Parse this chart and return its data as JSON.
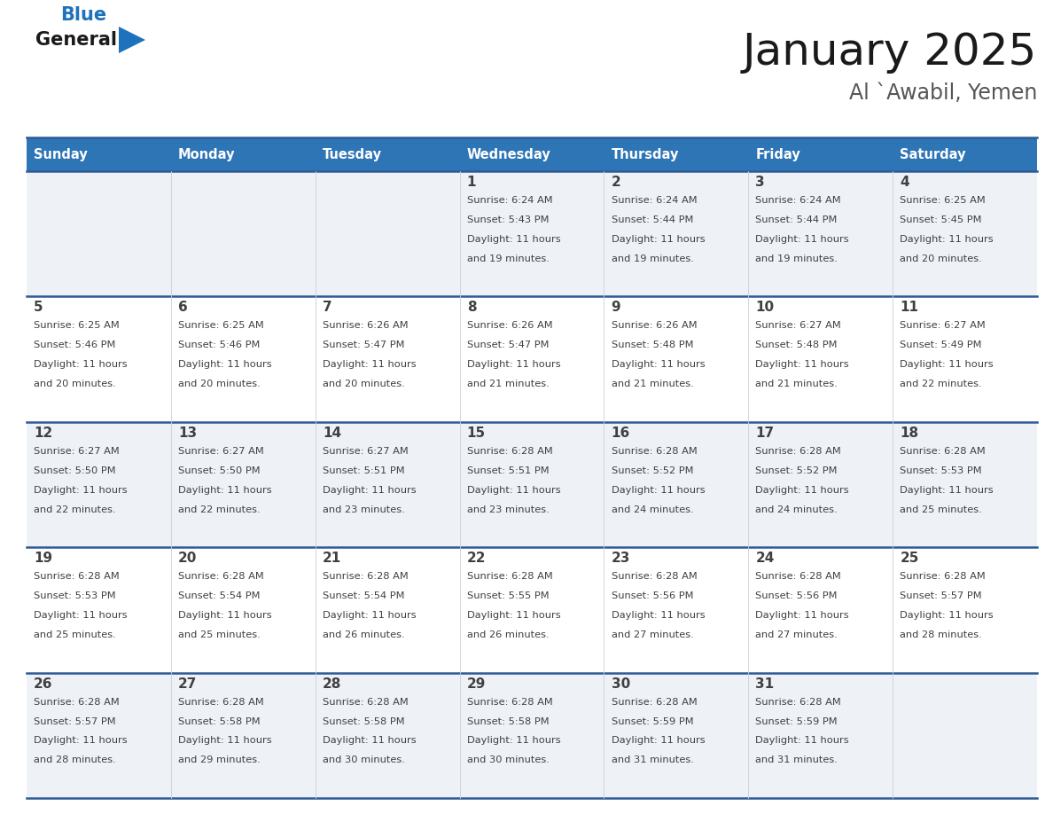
{
  "title": "January 2025",
  "subtitle": "Al `Awabil, Yemen",
  "header_bg": "#2E75B6",
  "header_text_color": "#FFFFFF",
  "cell_bg_even": "#EEF2F7",
  "cell_bg_odd": "#FFFFFF",
  "row_line_color": "#2E5A96",
  "text_color": "#404040",
  "days_of_week": [
    "Sunday",
    "Monday",
    "Tuesday",
    "Wednesday",
    "Thursday",
    "Friday",
    "Saturday"
  ],
  "calendar_data": [
    [
      {
        "day": "",
        "sunrise": "",
        "sunset": "",
        "daylight": ""
      },
      {
        "day": "",
        "sunrise": "",
        "sunset": "",
        "daylight": ""
      },
      {
        "day": "",
        "sunrise": "",
        "sunset": "",
        "daylight": ""
      },
      {
        "day": "1",
        "sunrise": "6:24 AM",
        "sunset": "5:43 PM",
        "daylight": "11 hours and 19 minutes."
      },
      {
        "day": "2",
        "sunrise": "6:24 AM",
        "sunset": "5:44 PM",
        "daylight": "11 hours and 19 minutes."
      },
      {
        "day": "3",
        "sunrise": "6:24 AM",
        "sunset": "5:44 PM",
        "daylight": "11 hours and 19 minutes."
      },
      {
        "day": "4",
        "sunrise": "6:25 AM",
        "sunset": "5:45 PM",
        "daylight": "11 hours and 20 minutes."
      }
    ],
    [
      {
        "day": "5",
        "sunrise": "6:25 AM",
        "sunset": "5:46 PM",
        "daylight": "11 hours and 20 minutes."
      },
      {
        "day": "6",
        "sunrise": "6:25 AM",
        "sunset": "5:46 PM",
        "daylight": "11 hours and 20 minutes."
      },
      {
        "day": "7",
        "sunrise": "6:26 AM",
        "sunset": "5:47 PM",
        "daylight": "11 hours and 20 minutes."
      },
      {
        "day": "8",
        "sunrise": "6:26 AM",
        "sunset": "5:47 PM",
        "daylight": "11 hours and 21 minutes."
      },
      {
        "day": "9",
        "sunrise": "6:26 AM",
        "sunset": "5:48 PM",
        "daylight": "11 hours and 21 minutes."
      },
      {
        "day": "10",
        "sunrise": "6:27 AM",
        "sunset": "5:48 PM",
        "daylight": "11 hours and 21 minutes."
      },
      {
        "day": "11",
        "sunrise": "6:27 AM",
        "sunset": "5:49 PM",
        "daylight": "11 hours and 22 minutes."
      }
    ],
    [
      {
        "day": "12",
        "sunrise": "6:27 AM",
        "sunset": "5:50 PM",
        "daylight": "11 hours and 22 minutes."
      },
      {
        "day": "13",
        "sunrise": "6:27 AM",
        "sunset": "5:50 PM",
        "daylight": "11 hours and 22 minutes."
      },
      {
        "day": "14",
        "sunrise": "6:27 AM",
        "sunset": "5:51 PM",
        "daylight": "11 hours and 23 minutes."
      },
      {
        "day": "15",
        "sunrise": "6:28 AM",
        "sunset": "5:51 PM",
        "daylight": "11 hours and 23 minutes."
      },
      {
        "day": "16",
        "sunrise": "6:28 AM",
        "sunset": "5:52 PM",
        "daylight": "11 hours and 24 minutes."
      },
      {
        "day": "17",
        "sunrise": "6:28 AM",
        "sunset": "5:52 PM",
        "daylight": "11 hours and 24 minutes."
      },
      {
        "day": "18",
        "sunrise": "6:28 AM",
        "sunset": "5:53 PM",
        "daylight": "11 hours and 25 minutes."
      }
    ],
    [
      {
        "day": "19",
        "sunrise": "6:28 AM",
        "sunset": "5:53 PM",
        "daylight": "11 hours and 25 minutes."
      },
      {
        "day": "20",
        "sunrise": "6:28 AM",
        "sunset": "5:54 PM",
        "daylight": "11 hours and 25 minutes."
      },
      {
        "day": "21",
        "sunrise": "6:28 AM",
        "sunset": "5:54 PM",
        "daylight": "11 hours and 26 minutes."
      },
      {
        "day": "22",
        "sunrise": "6:28 AM",
        "sunset": "5:55 PM",
        "daylight": "11 hours and 26 minutes."
      },
      {
        "day": "23",
        "sunrise": "6:28 AM",
        "sunset": "5:56 PM",
        "daylight": "11 hours and 27 minutes."
      },
      {
        "day": "24",
        "sunrise": "6:28 AM",
        "sunset": "5:56 PM",
        "daylight": "11 hours and 27 minutes."
      },
      {
        "day": "25",
        "sunrise": "6:28 AM",
        "sunset": "5:57 PM",
        "daylight": "11 hours and 28 minutes."
      }
    ],
    [
      {
        "day": "26",
        "sunrise": "6:28 AM",
        "sunset": "5:57 PM",
        "daylight": "11 hours and 28 minutes."
      },
      {
        "day": "27",
        "sunrise": "6:28 AM",
        "sunset": "5:58 PM",
        "daylight": "11 hours and 29 minutes."
      },
      {
        "day": "28",
        "sunrise": "6:28 AM",
        "sunset": "5:58 PM",
        "daylight": "11 hours and 30 minutes."
      },
      {
        "day": "29",
        "sunrise": "6:28 AM",
        "sunset": "5:58 PM",
        "daylight": "11 hours and 30 minutes."
      },
      {
        "day": "30",
        "sunrise": "6:28 AM",
        "sunset": "5:59 PM",
        "daylight": "11 hours and 31 minutes."
      },
      {
        "day": "31",
        "sunrise": "6:28 AM",
        "sunset": "5:59 PM",
        "daylight": "11 hours and 31 minutes."
      },
      {
        "day": "",
        "sunrise": "",
        "sunset": "",
        "daylight": ""
      }
    ]
  ],
  "logo_text_general": "General",
  "logo_text_blue": "Blue",
  "logo_color_general": "#1a1a1a",
  "logo_color_blue": "#1E72BB",
  "logo_triangle_color": "#1E72BB",
  "title_fontsize": 36,
  "subtitle_fontsize": 17,
  "header_fontsize": 10.5,
  "day_num_fontsize": 11,
  "cell_text_fontsize": 8.2
}
